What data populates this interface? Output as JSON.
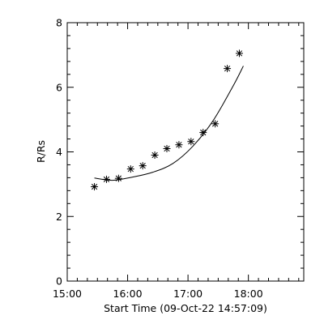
{
  "chart_data": {
    "type": "scatter",
    "title": "",
    "xlabel": "Start Time (09-Oct-22 14:57:09)",
    "ylabel": "R/Rs",
    "x_unit": "clock time (HH:MM, 09-Oct-22)",
    "xlim": [
      "15:00",
      "18:55"
    ],
    "ylim": [
      0,
      8
    ],
    "x_ticks": [
      "15:00",
      "16:00",
      "17:00",
      "18:00"
    ],
    "y_ticks": [
      "0",
      "2",
      "4",
      "6",
      "8"
    ],
    "grid": false,
    "legend": "none",
    "series": [
      {
        "marker": "asterisk",
        "points": [
          {
            "x": "15:27",
            "y": 2.92
          },
          {
            "x": "15:39",
            "y": 3.15
          },
          {
            "x": "15:51",
            "y": 3.18
          },
          {
            "x": "16:03",
            "y": 3.47
          },
          {
            "x": "16:15",
            "y": 3.57
          },
          {
            "x": "16:27",
            "y": 3.9
          },
          {
            "x": "16:39",
            "y": 4.1
          },
          {
            "x": "16:51",
            "y": 4.22
          },
          {
            "x": "17:03",
            "y": 4.32
          },
          {
            "x": "17:15",
            "y": 4.6
          },
          {
            "x": "17:27",
            "y": 4.87
          },
          {
            "x": "17:39",
            "y": 6.58
          },
          {
            "x": "17:51",
            "y": 7.05
          }
        ]
      },
      {
        "style": "line",
        "fit_points": [
          {
            "x": "15:27",
            "y": 3.19
          },
          {
            "x": "15:45",
            "y": 3.12
          },
          {
            "x": "16:05",
            "y": 3.22
          },
          {
            "x": "16:25",
            "y": 3.37
          },
          {
            "x": "16:45",
            "y": 3.64
          },
          {
            "x": "17:05",
            "y": 4.18
          },
          {
            "x": "17:25",
            "y": 4.97
          },
          {
            "x": "17:45",
            "y": 6.05
          },
          {
            "x": "17:55",
            "y": 6.66
          }
        ]
      }
    ]
  }
}
